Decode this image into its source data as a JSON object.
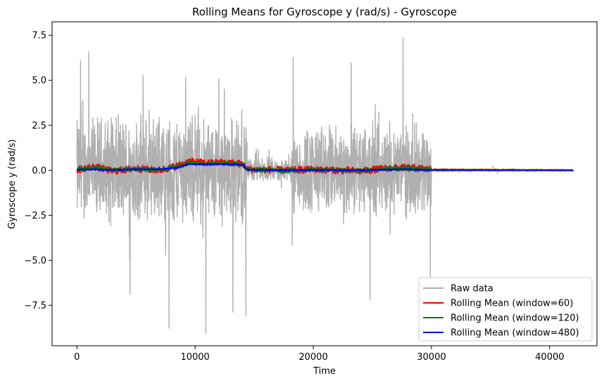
{
  "chart_data": {
    "type": "line",
    "title": "Rolling Means for Gyroscope y (rad/s) - Gyroscope",
    "xlabel": "Time",
    "ylabel": "Gyroscope y (rad/s)",
    "xlim": [
      -2100,
      44000
    ],
    "ylim": [
      -9.75,
      8.25
    ],
    "xticks": [
      0,
      10000,
      20000,
      30000,
      40000
    ],
    "xtick_labels": [
      "0",
      "10000",
      "20000",
      "30000",
      "40000"
    ],
    "yticks": [
      -7.5,
      -5.0,
      -2.5,
      0.0,
      2.5,
      5.0,
      7.5
    ],
    "ytick_labels": [
      "−7.5",
      "−5.0",
      "−2.5",
      "0.0",
      "2.5",
      "5.0",
      "7.5"
    ],
    "grid": false,
    "legend_position": "lower-right",
    "series": [
      {
        "name": "Raw data",
        "color": "#b0b0b0",
        "segments": [
          {
            "x": [
              0,
              14400
            ],
            "amplitude": 2.6,
            "peaks": [
              [
                300,
                6.1
              ],
              [
                1000,
                6.6
              ],
              [
                5600,
                5.3
              ],
              [
                9200,
                5.2
              ],
              [
                12000,
                5.1
              ],
              [
                7800,
                -8.8
              ],
              [
                10900,
                -9.1
              ],
              [
                13200,
                -7.9
              ],
              [
                14300,
                -8.1
              ],
              [
                4500,
                -6.9
              ]
            ]
          },
          {
            "x": [
              14400,
              18200
            ],
            "amplitude": 0.6,
            "peaks": [
              [
                15200,
                1.2
              ],
              [
                17300,
                -1.0
              ]
            ]
          },
          {
            "x": [
              18200,
              30000
            ],
            "amplitude": 2.2,
            "peaks": [
              [
                18300,
                6.3
              ],
              [
                23200,
                6.0
              ],
              [
                27600,
                7.4
              ],
              [
                24800,
                -7.2
              ],
              [
                29900,
                -6.0
              ]
            ]
          },
          {
            "x": [
              30000,
              42000
            ],
            "amplitude": 0.05,
            "peaks": [
              [
                35200,
                0.25
              ],
              [
                35600,
                -0.2
              ]
            ]
          }
        ]
      },
      {
        "name": "Rolling Mean (window=60)",
        "color": "#ff0000",
        "points": [
          [
            0,
            0.05
          ],
          [
            1500,
            0.2
          ],
          [
            3000,
            -0.05
          ],
          [
            5000,
            0.1
          ],
          [
            7000,
            0.0
          ],
          [
            8500,
            0.25
          ],
          [
            9500,
            0.5
          ],
          [
            11000,
            0.4
          ],
          [
            12500,
            0.45
          ],
          [
            14000,
            0.35
          ],
          [
            14500,
            0.05
          ],
          [
            18000,
            0.0
          ],
          [
            20000,
            0.05
          ],
          [
            22000,
            0.0
          ],
          [
            24000,
            -0.05
          ],
          [
            26000,
            0.1
          ],
          [
            27500,
            0.15
          ],
          [
            29000,
            0.1
          ],
          [
            30000,
            0.05
          ],
          [
            42000,
            0.0
          ]
        ],
        "noise": 0.2
      },
      {
        "name": "Rolling Mean (window=120)",
        "color": "#008000",
        "points": [
          [
            0,
            0.05
          ],
          [
            1500,
            0.15
          ],
          [
            3000,
            0.0
          ],
          [
            5000,
            0.08
          ],
          [
            7000,
            0.02
          ],
          [
            8500,
            0.2
          ],
          [
            9500,
            0.42
          ],
          [
            11000,
            0.38
          ],
          [
            12500,
            0.4
          ],
          [
            14000,
            0.32
          ],
          [
            14500,
            0.03
          ],
          [
            18000,
            0.0
          ],
          [
            20000,
            0.03
          ],
          [
            22000,
            0.0
          ],
          [
            24000,
            -0.03
          ],
          [
            26000,
            0.08
          ],
          [
            27500,
            0.1
          ],
          [
            29000,
            0.08
          ],
          [
            30000,
            0.03
          ],
          [
            42000,
            0.0
          ]
        ],
        "noise": 0.12
      },
      {
        "name": "Rolling Mean (window=480)",
        "color": "#0000ff",
        "points": [
          [
            0,
            0.03
          ],
          [
            1500,
            0.05
          ],
          [
            3000,
            0.02
          ],
          [
            5000,
            0.05
          ],
          [
            7000,
            0.05
          ],
          [
            8500,
            0.15
          ],
          [
            9500,
            0.35
          ],
          [
            11000,
            0.33
          ],
          [
            12500,
            0.35
          ],
          [
            14000,
            0.3
          ],
          [
            14500,
            0.02
          ],
          [
            18000,
            0.0
          ],
          [
            20000,
            0.02
          ],
          [
            22000,
            0.0
          ],
          [
            24000,
            0.0
          ],
          [
            26000,
            0.03
          ],
          [
            27500,
            0.05
          ],
          [
            29000,
            0.03
          ],
          [
            30000,
            0.0
          ],
          [
            42000,
            0.0
          ]
        ],
        "noise": 0.03
      }
    ]
  }
}
